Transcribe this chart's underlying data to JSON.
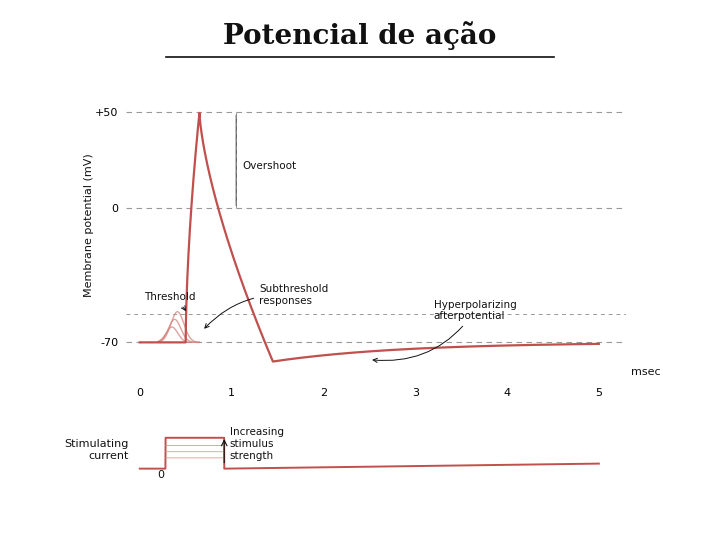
{
  "title": "Potencial de ação",
  "title_fontsize": 20,
  "background_color": "#ffffff",
  "line_color": "#c0504d",
  "line_color_light": "#d4837f",
  "dashed_color": "#999999",
  "text_color": "#111111",
  "ylabel": "Membrane potential (mV)",
  "xlabel_time": "5 msec",
  "y_tick_labels": [
    "+50",
    "0",
    "-70"
  ],
  "y_tick_vals": [
    50,
    0,
    -70
  ],
  "x_ticks": [
    0,
    1,
    2,
    3,
    4,
    5
  ],
  "xlim": [
    -0.15,
    5.3
  ],
  "ylim": [
    -90,
    72
  ],
  "resting_potential": -70,
  "threshold": -55,
  "peak": 50,
  "stim_current_label": "Stimulating\ncurrent",
  "stim_increasing_label": "Increasing\nstimulus\nstrength"
}
